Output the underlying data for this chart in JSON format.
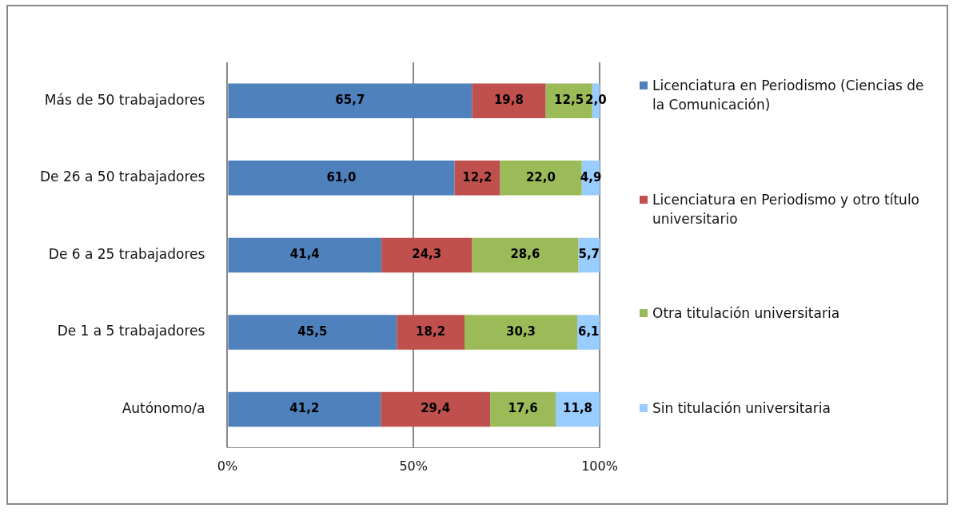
{
  "chart_data": {
    "type": "bar",
    "orientation": "horizontal",
    "stacked": true,
    "categories": [
      "Más de 50 trabajadores",
      "De 26 a 50 trabajadores",
      "De 6 a 25 trabajadores",
      "De 1 a 5 trabajadores",
      "Autónomo/a"
    ],
    "series": [
      {
        "name": "Licenciatura en Periodismo (Ciencias de la Comunicación)",
        "color": "#4f81bd",
        "values": [
          65.7,
          61.0,
          41.4,
          45.5,
          41.2
        ],
        "value_labels": [
          "65,7",
          "61,0",
          "41,4",
          "45,5",
          "41,2"
        ]
      },
      {
        "name": "Licenciatura en Periodismo y otro título universitario",
        "color": "#c0504d",
        "values": [
          19.8,
          12.2,
          24.3,
          18.2,
          29.4
        ],
        "value_labels": [
          "19,8",
          "12,2",
          "24,3",
          "18,2",
          "29,4"
        ]
      },
      {
        "name": "Otra titulación universitaria",
        "color": "#9bbb59",
        "values": [
          12.5,
          22.0,
          28.6,
          30.3,
          17.6
        ],
        "value_labels": [
          "12,5",
          "22,0",
          "28,6",
          "30,3",
          "17,6"
        ]
      },
      {
        "name": "Sin titulación universitaria",
        "color": "#99ccff",
        "values": [
          2.0,
          4.9,
          5.7,
          6.1,
          11.8
        ],
        "value_labels": [
          "2,0",
          "4,9",
          "5,7",
          "6,1",
          "11,8"
        ]
      }
    ],
    "xlim": [
      0,
      100
    ],
    "xticks": [
      {
        "value": 0,
        "label": "0%"
      },
      {
        "value": 50,
        "label": "50%"
      },
      {
        "value": 100,
        "label": "100%"
      }
    ],
    "grid": "x",
    "legend": "right"
  }
}
